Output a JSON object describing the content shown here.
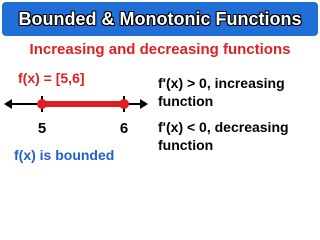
{
  "header": {
    "title": "Bounded & Monotonic Functions"
  },
  "subtitle": "Increasing and decreasing functions",
  "left": {
    "set_label": "f(x) = [5,6]",
    "tick_labels": [
      "5",
      "6"
    ],
    "caption": "f(x) is bounded"
  },
  "right": {
    "items": [
      "f'(x) > 0, increasing function",
      "f'(x) < 0, decreasing function"
    ]
  }
}
